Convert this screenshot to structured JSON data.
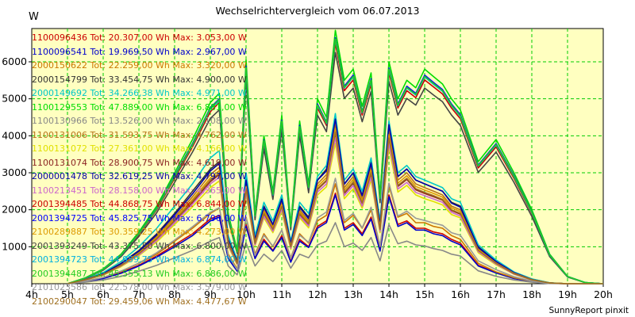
{
  "chart_data": {
    "type": "line",
    "title": "Wechselrichtervergleich vom 06.07.2013",
    "ylabel": "W",
    "xlabel": "",
    "footer": "SunnyReport pinxit",
    "x_ticks": [
      "4h",
      "5h",
      "6h",
      "7h",
      "8h",
      "9h",
      "10h",
      "11h",
      "12h",
      "13h",
      "14h",
      "15h",
      "16h",
      "17h",
      "18h",
      "19h",
      "20h"
    ],
    "y_ticks": [
      "1000",
      "2000",
      "3000",
      "4000",
      "5000",
      "6000"
    ],
    "xlim": [
      4,
      20
    ],
    "ylim": [
      0,
      6900
    ],
    "grid": true,
    "legend_position": "top-left",
    "x": [
      5.0,
      5.5,
      6.0,
      6.5,
      7.0,
      7.5,
      8.0,
      8.5,
      9.0,
      9.25,
      9.5,
      9.75,
      10.0,
      10.25,
      10.5,
      10.75,
      11.0,
      11.25,
      11.5,
      11.75,
      12.0,
      12.25,
      12.5,
      12.75,
      13.0,
      13.25,
      13.5,
      13.75,
      14.0,
      14.25,
      14.5,
      14.75,
      15.0,
      15.25,
      15.5,
      15.75,
      16.0,
      16.5,
      17.0,
      17.5,
      18.0,
      18.5,
      19.0,
      19.5,
      20.0
    ],
    "series": [
      {
        "name": "1100096436",
        "label": "1100096436 Tot: 20.307,00 Wh Max: 3.053,00 W",
        "color": "#cc0000",
        "values": [
          0,
          60,
          150,
          300,
          500,
          750,
          1050,
          1350,
          1750,
          1850,
          700,
          350,
          1600,
          700,
          1200,
          900,
          1300,
          600,
          1200,
          1000,
          1550,
          1700,
          2450,
          1500,
          1650,
          1350,
          1800,
          900,
          2400,
          1600,
          1700,
          1500,
          1500,
          1400,
          1350,
          1200,
          1100,
          500,
          300,
          150,
          60,
          10,
          0,
          0,
          0
        ]
      },
      {
        "name": "1100096541",
        "label": "1100096541 Tot: 19.969,50 Wh Max: 2.967,00 W",
        "color": "#0000cc",
        "values": [
          0,
          55,
          140,
          280,
          480,
          720,
          1000,
          1300,
          1700,
          1800,
          680,
          340,
          1550,
          680,
          1150,
          880,
          1250,
          580,
          1150,
          980,
          1500,
          1650,
          2400,
          1450,
          1600,
          1300,
          1750,
          880,
          2350,
          1550,
          1650,
          1450,
          1450,
          1350,
          1300,
          1150,
          1050,
          480,
          290,
          140,
          55,
          10,
          0,
          0,
          0
        ]
      },
      {
        "name": "2000150622",
        "label": "2000150622 Tot: 22.259,00 Wh Max: 3.320,00 W",
        "color": "#cc7700",
        "values": [
          0,
          70,
          170,
          330,
          550,
          800,
          1150,
          1500,
          1900,
          2050,
          800,
          400,
          1800,
          800,
          1350,
          1000,
          1450,
          700,
          1350,
          1100,
          1700,
          1850,
          2700,
          1650,
          1850,
          1500,
          2000,
          1000,
          2650,
          1800,
          1900,
          1650,
          1650,
          1550,
          1500,
          1300,
          1200,
          550,
          320,
          160,
          70,
          10,
          0,
          0,
          0
        ]
      },
      {
        "name": "2000154799",
        "label": "2000154799 Tot: 33.454,75 Wh Max: 4.900,00 W",
        "color": "#333333",
        "values": [
          0,
          120,
          280,
          550,
          900,
          1350,
          1900,
          2500,
          3100,
          3300,
          1200,
          600,
          2800,
          1200,
          2100,
          1600,
          2300,
          1100,
          2100,
          1800,
          2800,
          3100,
          4500,
          2700,
          3000,
          2400,
          3300,
          1600,
          4300,
          2900,
          3100,
          2800,
          2700,
          2600,
          2500,
          2200,
          2100,
          1000,
          600,
          300,
          120,
          20,
          0,
          0,
          0
        ]
      },
      {
        "name": "2000149692",
        "label": "2000149692 Tot: 34.266,38 Wh Max: 4.971,00 W",
        "color": "#00c8c8",
        "values": [
          0,
          130,
          300,
          600,
          1000,
          1500,
          2100,
          2700,
          3400,
          3600,
          1300,
          650,
          3000,
          1300,
          2200,
          1700,
          2400,
          1150,
          2200,
          1900,
          2900,
          3200,
          4600,
          2800,
          3100,
          2500,
          3400,
          1700,
          4400,
          3000,
          3200,
          2900,
          2800,
          2700,
          2600,
          2300,
          2200,
          1050,
          640,
          320,
          130,
          25,
          0,
          0,
          0
        ]
      },
      {
        "name": "1100129553",
        "label": "1100129553 Tot: 47.889,00 Wh Max: 6.881,00 W",
        "color": "#00dd00",
        "values": [
          0,
          160,
          400,
          800,
          1400,
          2100,
          3000,
          3900,
          4900,
          5150,
          1900,
          900,
          6050,
          1900,
          4000,
          2500,
          4550,
          1600,
          4400,
          2700,
          5000,
          4500,
          6850,
          5500,
          5800,
          4800,
          5700,
          2400,
          6000,
          5000,
          5500,
          5300,
          5800,
          5600,
          5400,
          5000,
          4700,
          3300,
          3900,
          3000,
          2000,
          800,
          200,
          30,
          0
        ]
      },
      {
        "name": "1100130966",
        "label": "1100130966 Tot: 13.526,00 Wh Max: 2.108,00 W",
        "color": "#888888",
        "values": [
          0,
          40,
          100,
          200,
          340,
          500,
          700,
          900,
          1150,
          1250,
          480,
          240,
          1100,
          480,
          800,
          600,
          900,
          420,
          800,
          700,
          1050,
          1150,
          1650,
          1000,
          1100,
          900,
          1250,
          620,
          1600,
          1080,
          1150,
          1050,
          1020,
          950,
          900,
          800,
          750,
          350,
          200,
          100,
          40,
          5,
          0,
          0,
          0
        ]
      },
      {
        "name": "1100131006",
        "label": "1100131006 Tot: 31.593,75 Wh Max: 4.762,00 W",
        "color": "#b8731a",
        "values": [
          0,
          110,
          260,
          520,
          850,
          1280,
          1800,
          2350,
          2950,
          3150,
          1150,
          580,
          2700,
          1150,
          2000,
          1550,
          2200,
          1050,
          2000,
          1700,
          2700,
          2950,
          4300,
          2600,
          2900,
          2300,
          3150,
          1550,
          4150,
          2800,
          3000,
          2700,
          2600,
          2500,
          2400,
          2100,
          2000,
          950,
          580,
          290,
          110,
          20,
          0,
          0,
          0
        ]
      },
      {
        "name": "1100131072",
        "label": "1100131072 Tot: 27.361,00 Wh Max: 4.166,00 W",
        "color": "#e0e000",
        "values": [
          0,
          100,
          230,
          460,
          760,
          1130,
          1600,
          2080,
          2600,
          2780,
          1020,
          510,
          2400,
          1020,
          1780,
          1380,
          1950,
          930,
          1780,
          1510,
          2400,
          2620,
          3800,
          2300,
          2570,
          2040,
          2800,
          1380,
          3680,
          2480,
          2660,
          2400,
          2300,
          2220,
          2130,
          1870,
          1780,
          840,
          510,
          260,
          100,
          18,
          0,
          0,
          0
        ]
      },
      {
        "name": "1100131074",
        "label": "1100131074 Tot: 28.900,75 Wh Max: 4.619,00 W",
        "color": "#8b2222",
        "values": [
          0,
          105,
          245,
          490,
          800,
          1200,
          1700,
          2200,
          2760,
          2950,
          1080,
          540,
          2550,
          1080,
          1880,
          1460,
          2070,
          990,
          1880,
          1600,
          2550,
          2780,
          4050,
          2440,
          2720,
          2160,
          2960,
          1460,
          3900,
          2630,
          2820,
          2540,
          2440,
          2350,
          2260,
          1980,
          1880,
          890,
          540,
          270,
          105,
          19,
          0,
          0,
          0
        ]
      },
      {
        "name": "2000001478",
        "label": "2000001478 Tot: 32.619,25 Wh Max: 4.797,00 W",
        "color": "#0000aa",
        "values": [
          0,
          115,
          270,
          540,
          880,
          1320,
          1860,
          2430,
          3050,
          3250,
          1190,
          600,
          2800,
          1190,
          2070,
          1600,
          2280,
          1090,
          2070,
          1760,
          2800,
          3050,
          4450,
          2690,
          3000,
          2380,
          3260,
          1600,
          4300,
          2900,
          3100,
          2800,
          2700,
          2600,
          2500,
          2180,
          2070,
          980,
          600,
          300,
          115,
          20,
          0,
          0,
          0
        ]
      },
      {
        "name": "1100213451",
        "label": "1100213451 Tot: 28.158,00 Wh Max: 4.365,00 W",
        "color": "#cc66cc",
        "values": [
          0,
          100,
          240,
          480,
          780,
          1170,
          1650,
          2150,
          2700,
          2880,
          1050,
          530,
          2480,
          1050,
          1830,
          1420,
          2020,
          960,
          1830,
          1560,
          2480,
          2700,
          3950,
          2380,
          2650,
          2100,
          2880,
          1420,
          3800,
          2560,
          2740,
          2470,
          2380,
          2290,
          2200,
          1930,
          1830,
          870,
          530,
          260,
          100,
          18,
          0,
          0,
          0
        ]
      },
      {
        "name": "2001394485",
        "label": "2001394485 Tot: 44.868,75 Wh Max: 6.844,00 W",
        "color": "#cc0000",
        "values": [
          0,
          150,
          380,
          760,
          1330,
          2000,
          2850,
          3700,
          4650,
          4900,
          1800,
          850,
          5750,
          1800,
          3800,
          2380,
          4320,
          1520,
          4180,
          2570,
          4750,
          4280,
          6500,
          5220,
          5510,
          4560,
          5400,
          2280,
          5700,
          4750,
          5220,
          5030,
          5510,
          5320,
          5130,
          4750,
          4460,
          3130,
          3700,
          2850,
          1900,
          760,
          190,
          28,
          0
        ]
      },
      {
        "name": "2001394725",
        "label": "2001394725 Tot: 45.825,75 Wh Max: 6.790,00 W",
        "color": "#0000ff",
        "values": [
          0,
          155,
          390,
          780,
          1360,
          2040,
          2920,
          3790,
          4760,
          5000,
          1850,
          870,
          5880,
          1850,
          3890,
          2430,
          4420,
          1550,
          4280,
          2620,
          4860,
          4370,
          6650,
          5340,
          5640,
          4660,
          5540,
          2330,
          5830,
          4860,
          5340,
          5150,
          5640,
          5440,
          5250,
          4860,
          4570,
          3210,
          3790,
          2920,
          1940,
          780,
          195,
          29,
          0
        ]
      },
      {
        "name": "2100289887",
        "label": "2100289887 Tot: 30.359,25 Wh Max: 4.273,00 W",
        "color": "#dd9900",
        "values": [
          0,
          110,
          250,
          500,
          830,
          1250,
          1750,
          2280,
          2860,
          3060,
          1120,
          560,
          2630,
          1120,
          1950,
          1510,
          2140,
          1020,
          1950,
          1660,
          2630,
          2870,
          4200,
          2530,
          2820,
          2240,
          3070,
          1510,
          4030,
          2720,
          2920,
          2630,
          2530,
          2440,
          2340,
          2050,
          1950,
          920,
          560,
          280,
          110,
          20,
          0,
          0,
          0
        ]
      },
      {
        "name": "2001393249",
        "label": "2001393249 Tot: 43.375,50 Wh Max: 6.800,00 W",
        "color": "#444444",
        "values": [
          0,
          145,
          365,
          730,
          1280,
          1920,
          2740,
          3560,
          4470,
          4700,
          1730,
          820,
          5520,
          1730,
          3650,
          2280,
          4150,
          1460,
          4010,
          2460,
          4560,
          4110,
          6250,
          5010,
          5290,
          4380,
          5200,
          2190,
          5470,
          4560,
          5010,
          4830,
          5290,
          5100,
          4920,
          4560,
          4280,
          3010,
          3560,
          2740,
          1820,
          730,
          180,
          27,
          0
        ]
      },
      {
        "name": "2001394723",
        "label": "2001394723 Tot: 44.959,75 Wh Max: 6.874,00 W",
        "color": "#00b0e0",
        "values": [
          0,
          152,
          385,
          770,
          1350,
          2020,
          2890,
          3750,
          4720,
          4950,
          1830,
          860,
          5820,
          1830,
          3850,
          2400,
          4380,
          1540,
          4230,
          2600,
          4810,
          4330,
          6600,
          5290,
          5590,
          4620,
          5490,
          2310,
          5780,
          4810,
          5290,
          5100,
          5590,
          5390,
          5200,
          4810,
          4520,
          3180,
          3750,
          2890,
          1920,
          770,
          193,
          29,
          0
        ]
      },
      {
        "name": "2001394487",
        "label": "2001394487 Tot: 45.555,13 Wh Max: 6.886,00 W",
        "color": "#22cc22",
        "values": [
          0,
          154,
          388,
          775,
          1355,
          2030,
          2900,
          3770,
          4740,
          4980,
          1840,
          865,
          5850,
          1840,
          3870,
          2420,
          4400,
          1545,
          4250,
          2610,
          4830,
          4350,
          6620,
          5310,
          5610,
          4640,
          5510,
          2320,
          5800,
          4830,
          5310,
          5120,
          5610,
          5410,
          5220,
          4830,
          4540,
          3190,
          3770,
          2900,
          1930,
          775,
          194,
          29,
          0
        ]
      },
      {
        "name": "2101023586",
        "label": "2101023586 Tot: 22.578,00 Wh Max: 3.579,00 W",
        "color": "#999999",
        "values": [
          0,
          70,
          170,
          340,
          560,
          840,
          1180,
          1540,
          1930,
          2060,
          760,
          380,
          1780,
          760,
          1310,
          1020,
          1450,
          690,
          1310,
          1120,
          1780,
          1940,
          2850,
          1710,
          1900,
          1510,
          2070,
          1020,
          2720,
          1830,
          1960,
          1770,
          1710,
          1640,
          1580,
          1380,
          1310,
          620,
          380,
          190,
          70,
          12,
          0,
          0,
          0
        ]
      },
      {
        "name": "2100290047",
        "label": "2100290047 Tot: 29.459,06 Wh Max: 4.477,67 W",
        "color": "#a07020",
        "values": [
          0,
          105,
          245,
          490,
          810,
          1220,
          1710,
          2230,
          2800,
          2990,
          1090,
          550,
          2570,
          1090,
          1900,
          1470,
          2090,
          1000,
          1900,
          1620,
          2570,
          2800,
          4100,
          2470,
          2750,
          2180,
          3000,
          1470,
          3940,
          2660,
          2850,
          2570,
          2470,
          2380,
          2280,
          2000,
          1900,
          900,
          550,
          270,
          105,
          19,
          0,
          0,
          0
        ]
      }
    ]
  }
}
